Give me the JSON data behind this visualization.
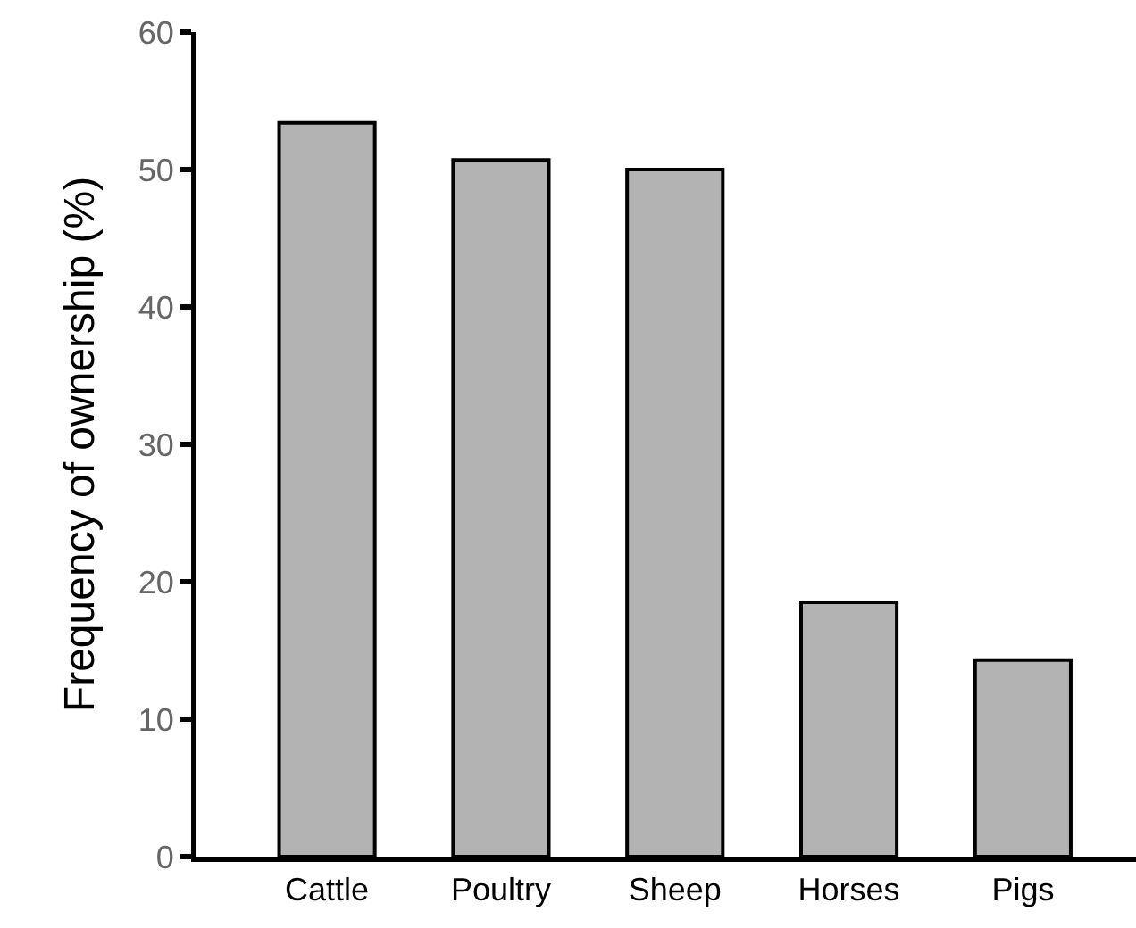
{
  "chart_data": {
    "type": "bar",
    "ylabel": "Frequency of ownership (%)",
    "categories": [
      "Cattle",
      "Poultry",
      "Sheep",
      "Horses",
      "Pigs"
    ],
    "values": [
      53.4,
      50.7,
      50.0,
      18.5,
      14.3
    ],
    "color": "#b3b3b3",
    "ylim": [
      0,
      60
    ],
    "yticks": [
      0,
      10,
      20,
      30,
      40,
      50,
      60
    ]
  }
}
